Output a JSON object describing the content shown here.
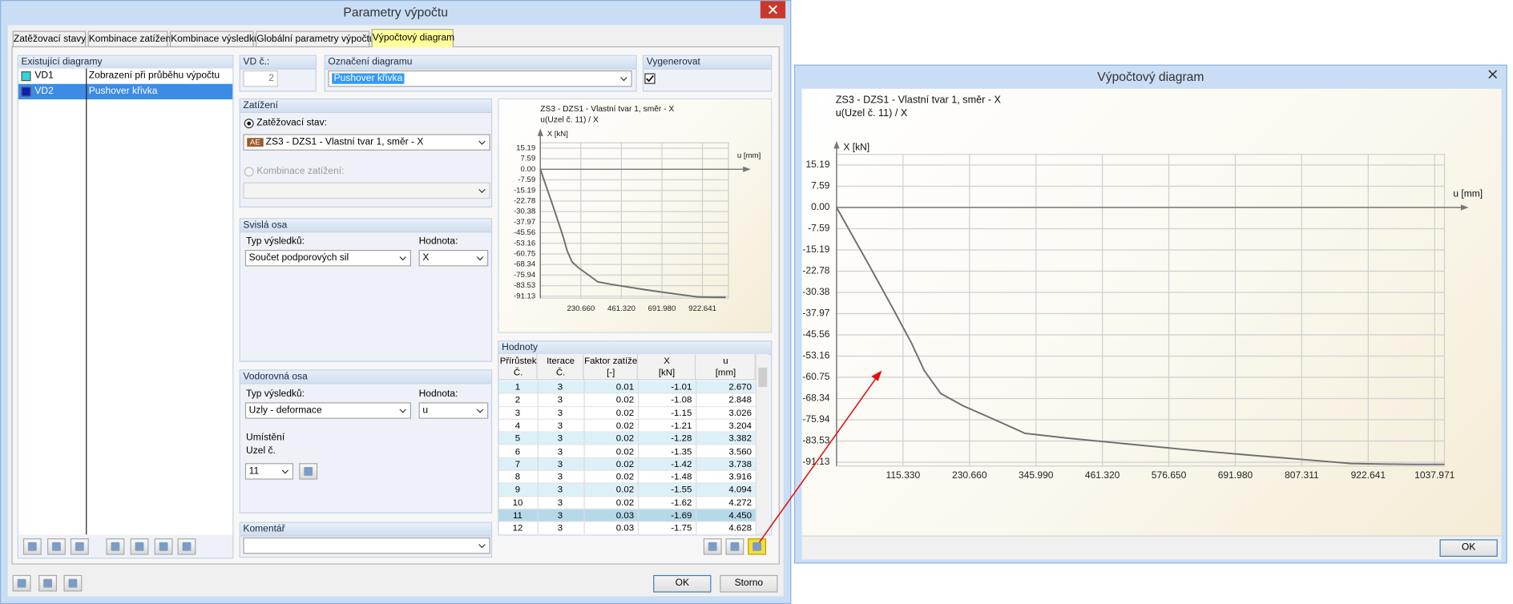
{
  "main_window": {
    "title": "Parametry výpočtu",
    "tabs": [
      "Zatěžovací stavy",
      "Kombinace zatížení",
      "Kombinace výsledků",
      "Globální parametry výpočtu",
      "Výpočtový diagram"
    ],
    "active_tab": 4,
    "existing_diagrams": {
      "title": "Existující diagramy",
      "selected_row": 1,
      "rows": [
        {
          "id": "VD1",
          "name": "Zobrazení při průběhu výpočtu",
          "color": "#33d6d6"
        },
        {
          "id": "VD2",
          "name": "Pushover křivka",
          "color": "#0a1fb8"
        }
      ]
    },
    "vd_no": {
      "label": "VD č.:",
      "value": "2"
    },
    "designation": {
      "label": "Označení diagramu",
      "value": "Pushover křivka"
    },
    "generate": {
      "label": "Vygenerovat",
      "checked": true
    },
    "loading": {
      "title": "Zatížení",
      "load_case_label": "Zatěžovací stav:",
      "load_case_tag": "AE",
      "load_case": "ZS3 - DZS1 - Vlastní tvar 1, směr - X",
      "combination_label": "Kombinace zatížení:"
    },
    "vertical_axis": {
      "title": "Svislá osa",
      "result_type_label": "Typ výsledků:",
      "result_type": "Součet podporových sil",
      "value_label": "Hodnota:",
      "value": "X"
    },
    "horizontal_axis": {
      "title": "Vodorovná osa",
      "result_type_label": "Typ výsledků:",
      "result_type": "Uzly - deformace",
      "value_label": "Hodnota:",
      "value": "u",
      "location_label": "Umístění",
      "node_label": "Uzel č.",
      "node": "11"
    },
    "comment": {
      "label": "Komentář"
    },
    "values_table": {
      "title": "Hodnoty",
      "columns": [
        [
          "Přírůstek",
          "Č."
        ],
        [
          "Iterace",
          "Č."
        ],
        [
          "Faktor zatíže",
          "[-]"
        ],
        [
          "X",
          "[kN]"
        ],
        [
          "u",
          "[mm]"
        ]
      ],
      "highlighted_rows": [
        0,
        4,
        6,
        8,
        10
      ],
      "selected_row": 10,
      "rows": [
        [
          "1",
          "3",
          "0.01",
          "-1.01",
          "2.670"
        ],
        [
          "2",
          "3",
          "0.02",
          "-1.08",
          "2.848"
        ],
        [
          "3",
          "3",
          "0.02",
          "-1.15",
          "3.026"
        ],
        [
          "4",
          "3",
          "0.02",
          "-1.21",
          "3.204"
        ],
        [
          "5",
          "3",
          "0.02",
          "-1.28",
          "3.382"
        ],
        [
          "6",
          "3",
          "0.02",
          "-1.35",
          "3.560"
        ],
        [
          "7",
          "3",
          "0.02",
          "-1.42",
          "3.738"
        ],
        [
          "8",
          "3",
          "0.02",
          "-1.48",
          "3.916"
        ],
        [
          "9",
          "3",
          "0.02",
          "-1.55",
          "4.094"
        ],
        [
          "10",
          "3",
          "0.02",
          "-1.62",
          "4.272"
        ],
        [
          "11",
          "3",
          "0.03",
          "-1.69",
          "4.450"
        ],
        [
          "12",
          "3",
          "0.03",
          "-1.75",
          "4.628"
        ]
      ]
    },
    "buttons": {
      "ok": "OK",
      "cancel": "Storno"
    }
  },
  "preview_window": {
    "title": "Výpočtový diagram",
    "ok": "OK"
  },
  "chart_data": [
    {
      "type": "line",
      "title": "ZS3 - DZS1 - Vlastní tvar 1, směr - X",
      "subtitle": "u(Uzel č. 11) / X",
      "y_label": "X [kN]",
      "x_label": "u [mm]",
      "x": [
        0,
        30,
        60,
        100,
        130,
        152,
        170,
        181,
        220,
        270,
        327,
        400,
        500,
        600,
        700,
        800,
        893,
        950,
        1000,
        1055
      ],
      "series": [
        {
          "color": "#6e6e6e",
          "values": [
            0,
            -11,
            -22,
            -37,
            -48.5,
            -58.3,
            -63.5,
            -66.6,
            -71,
            -75.5,
            -80.8,
            -82.5,
            -84.5,
            -86.5,
            -88.3,
            -90,
            -91.6,
            -91.8,
            -91.9,
            -91.9
          ]
        }
      ],
      "xlim": [
        0,
        1071
      ],
      "ylim": [
        -92.5,
        19
      ],
      "xticks": [
        {
          "value": 230.66,
          "label": "230.660"
        },
        {
          "value": 461.32,
          "label": "461.320"
        },
        {
          "value": 691.98,
          "label": "691.980"
        },
        922.641
      ],
      "yticks": [
        15.19,
        7.59,
        {
          "value": 0,
          "label": "0.00"
        },
        -7.59,
        -15.19,
        -22.78,
        -30.38,
        -37.97,
        -45.56,
        -53.16,
        -60.75,
        -68.34,
        -75.94,
        -83.53,
        -91.13
      ],
      "grid": true
    },
    {
      "type": "line",
      "title": "ZS3 - DZS1 - Vlastní tvar 1, směr - X",
      "subtitle": "u(Uzel č. 11) / X",
      "y_label": "X [kN]",
      "x_label": "u [mm]",
      "x": [
        0,
        30,
        60,
        100,
        130,
        152,
        170,
        181,
        220,
        270,
        327,
        400,
        500,
        600,
        700,
        800,
        893,
        950,
        1000,
        1055
      ],
      "series": [
        {
          "color": "#6e6e6e",
          "values": [
            0,
            -11,
            -22,
            -37,
            -48.5,
            -58.3,
            -63.5,
            -66.6,
            -71,
            -75.5,
            -80.8,
            -82.5,
            -84.5,
            -86.5,
            -88.3,
            -90,
            -91.6,
            -91.8,
            -91.9,
            -91.9
          ]
        }
      ],
      "xlim": [
        0,
        1055
      ],
      "ylim": [
        -92.5,
        19
      ],
      "xticks": [
        {
          "value": 115.33,
          "label": "115.330"
        },
        {
          "value": 230.66,
          "label": "230.660"
        },
        {
          "value": 345.99,
          "label": "345.990"
        },
        {
          "value": 461.32,
          "label": "461.320"
        },
        {
          "value": 576.65,
          "label": "576.650"
        },
        {
          "value": 691.98,
          "label": "691.980"
        },
        807.311,
        922.641,
        1037.971
      ],
      "yticks": [
        15.19,
        7.59,
        {
          "value": 0,
          "label": "0.00"
        },
        -7.59,
        -15.19,
        -22.78,
        -30.38,
        -37.97,
        -45.56,
        -53.16,
        -60.75,
        -68.34,
        -75.94,
        -83.53,
        -91.13
      ],
      "grid": true
    }
  ]
}
